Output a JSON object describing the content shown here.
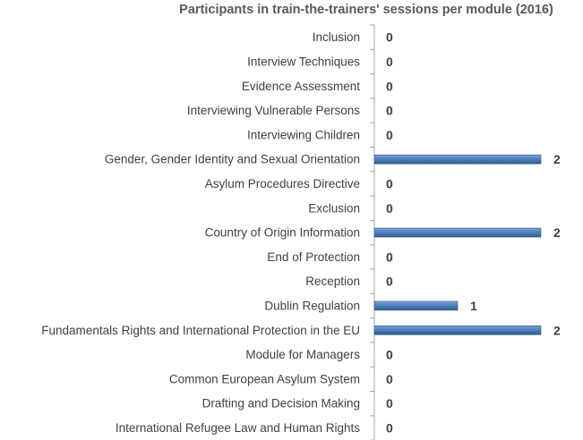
{
  "chart_data": {
    "type": "bar",
    "orientation": "horizontal",
    "title": "Participants in train-the-trainers' sessions per module (2016)",
    "xlabel": "",
    "ylabel": "",
    "xlim": [
      0,
      2
    ],
    "grid": false,
    "categories": [
      "Inclusion",
      "Interview Techniques",
      "Evidence Assessment",
      "Interviewing Vulnerable Persons",
      "Interviewing Children",
      "Gender, Gender Identity and Sexual Orientation",
      "Asylum Procedures Directive",
      "Exclusion",
      "Country of Origin Information",
      "End of Protection",
      "Reception",
      "Dublin Regulation",
      "Fundamentals Rights and International Protection in the EU",
      "Module for Managers",
      "Common European Asylum System",
      "Drafting and Decision Making",
      "International Refugee Law and Human Rights"
    ],
    "values": [
      0,
      0,
      0,
      0,
      0,
      2,
      0,
      0,
      2,
      0,
      0,
      1,
      2,
      0,
      0,
      0,
      0
    ],
    "data_labels": [
      "0",
      "0",
      "0",
      "0",
      "0",
      "2",
      "0",
      "0",
      "2",
      "0",
      "0",
      "1",
      "2",
      "0",
      "0",
      "0",
      "0"
    ],
    "bar_color": "#4f81bd",
    "bar_color_dark": "#2e5b8c"
  }
}
